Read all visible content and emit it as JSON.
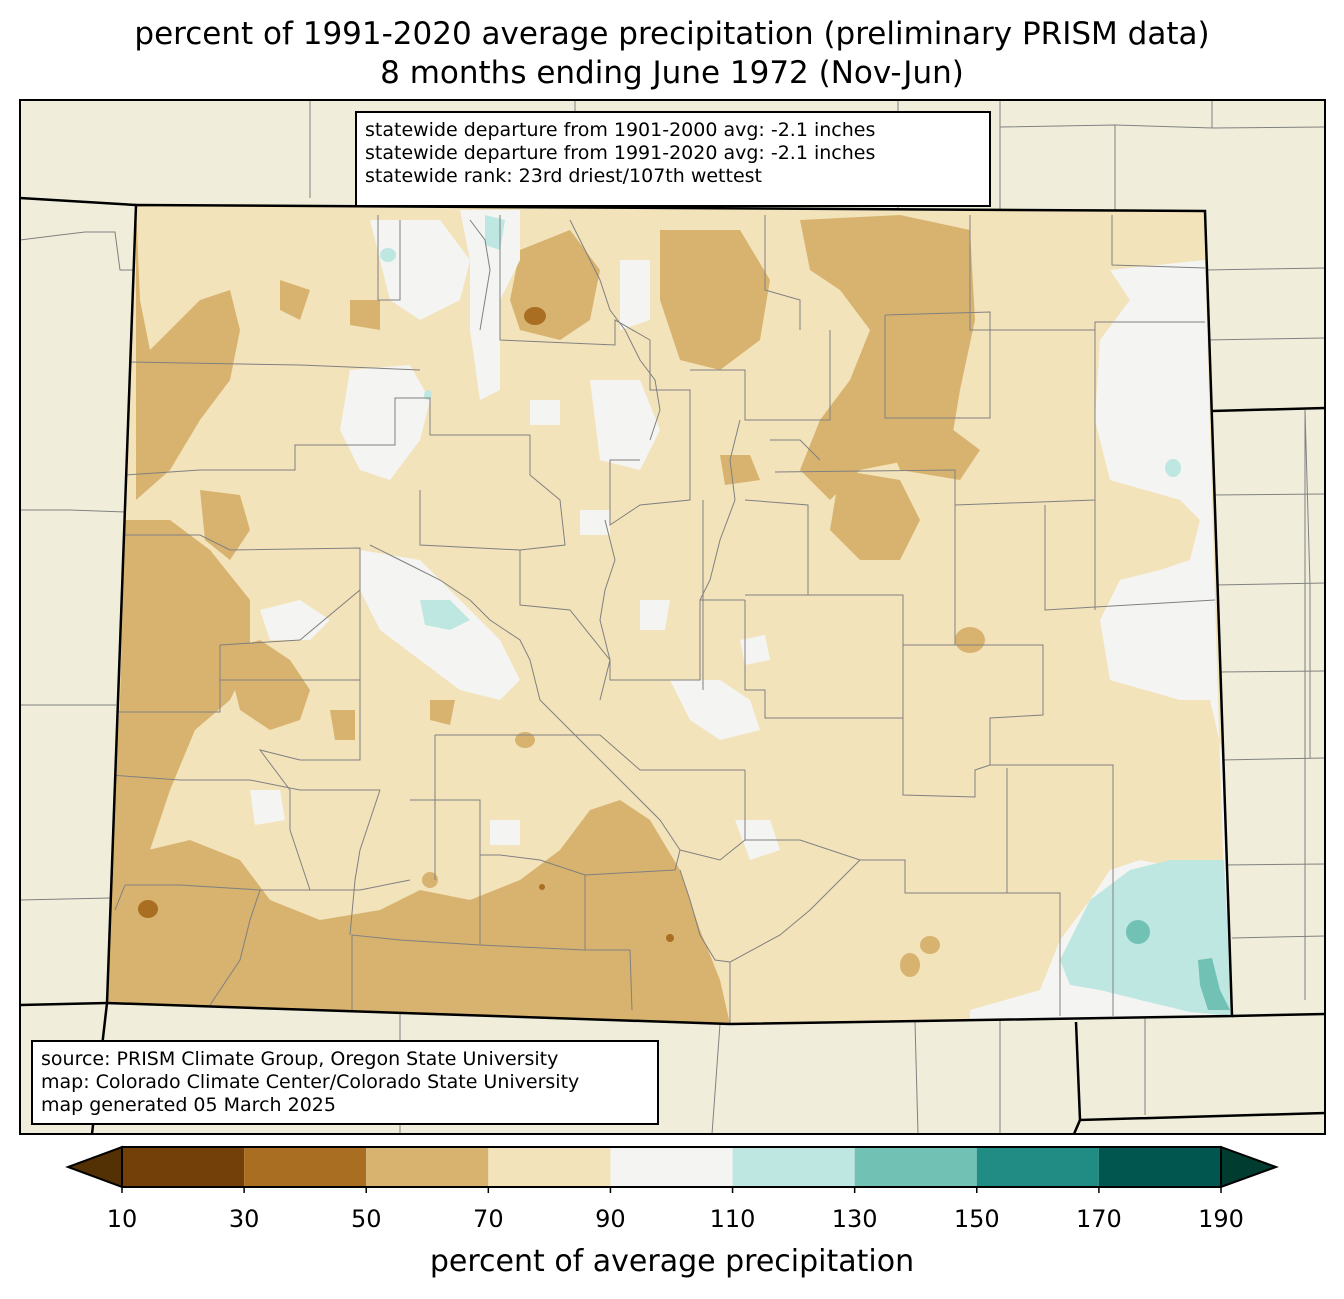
{
  "title": {
    "line1": "percent of 1991-2020 average precipitation (preliminary PRISM data)",
    "line2": "8 months ending June 1972 (Nov-Jun)"
  },
  "stats_box": {
    "line1": "statewide departure from 1901-2000 avg: -2.1 inches",
    "line2": "statewide departure from 1991-2020 avg: -2.1 inches",
    "line3": "statewide rank: 23rd driest/107th wettest"
  },
  "source_box": {
    "line1": "source: PRISM Climate Group, Oregon State University",
    "line2": "map: Colorado Climate Center/Colorado State University",
    "line3": "map generated 05 March 2025"
  },
  "colorbar": {
    "label": "percent of average precipitation",
    "ticks": [
      "10",
      "30",
      "50",
      "70",
      "90",
      "110",
      "130",
      "150",
      "170",
      "190"
    ],
    "under_color": "#543005",
    "over_color": "#003c30",
    "colors": [
      "#8c510a",
      "#bf812d",
      "#dfc27d",
      "#f6e8c3",
      "#f5f5f5",
      "#c7eae5",
      "#80cdc1",
      "#35978f",
      "#01665e"
    ],
    "colors_rendered": [
      "#73400a",
      "#a96e22",
      "#d8b36f",
      "#f3e3bb",
      "#f4f4f2",
      "#bfe7e2",
      "#71c1b5",
      "#218c83",
      "#01574f"
    ]
  },
  "map_colors": {
    "outside_state": "#f0eedb",
    "state_boundary": "#000000",
    "county_lines": "#808080"
  }
}
